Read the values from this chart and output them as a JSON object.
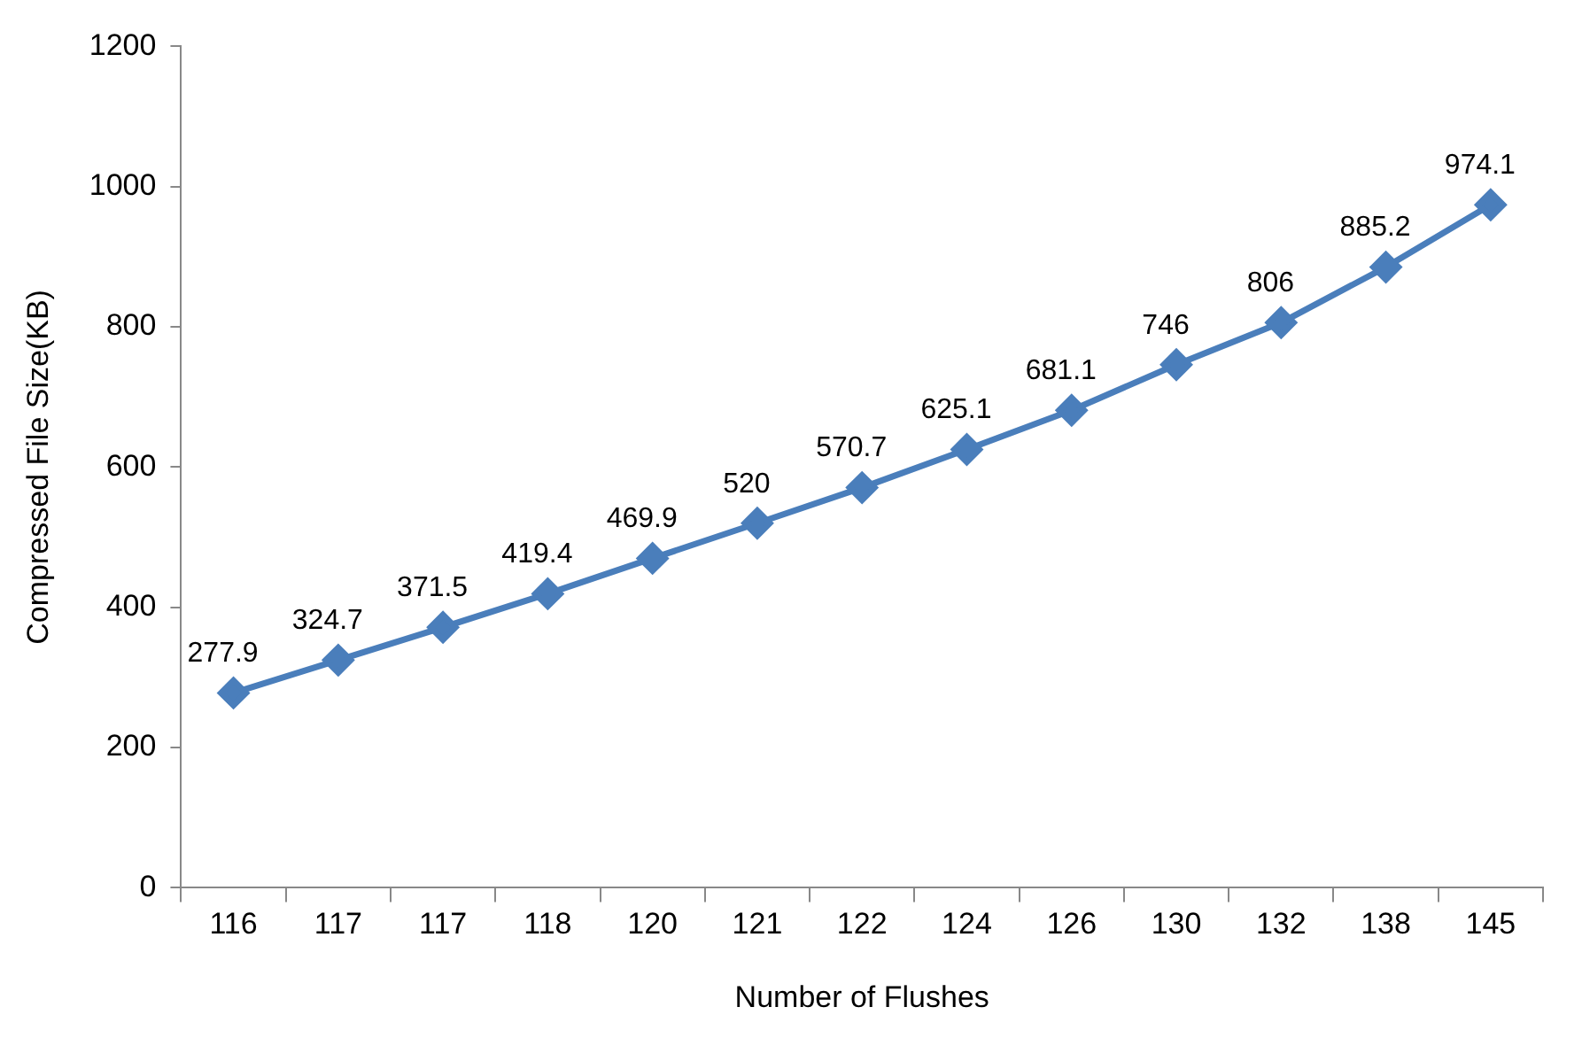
{
  "chart_data": {
    "type": "line",
    "xlabel": "Number of Flushes",
    "ylabel": "Compressed File Size(KB)",
    "categories": [
      "116",
      "117",
      "117",
      "118",
      "120",
      "121",
      "122",
      "124",
      "126",
      "130",
      "132",
      "138",
      "145"
    ],
    "series": [
      {
        "color": "#4a7ebb",
        "values": [
          277.9,
          324.7,
          371.5,
          419.4,
          469.9,
          520,
          570.7,
          625.1,
          681.1,
          746,
          806,
          885.2,
          974.1
        ]
      }
    ],
    "ylim": [
      0,
      1200
    ],
    "yticks": [
      0,
      200,
      400,
      600,
      800,
      1000,
      1200
    ],
    "grid": false,
    "legend": false,
    "marker": "diamond",
    "line_style": "solid",
    "data_labels": true
  }
}
